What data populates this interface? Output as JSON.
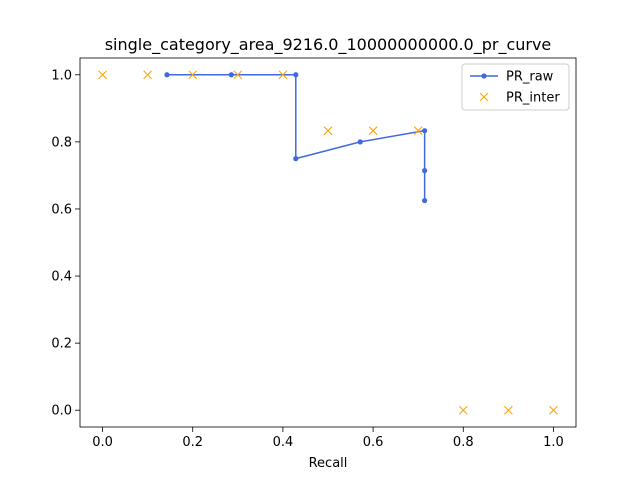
{
  "chart_data": {
    "type": "line",
    "title": "single_category_area_9216.0_10000000000.0_pr_curve",
    "xlabel": "Recall",
    "ylabel": "",
    "xlim": [
      -0.05,
      1.05
    ],
    "ylim": [
      -0.05,
      1.05
    ],
    "xticks": [
      "0.0",
      "0.2",
      "0.4",
      "0.6",
      "0.8",
      "1.0"
    ],
    "yticks": [
      "0.0",
      "0.2",
      "0.4",
      "0.6",
      "0.8",
      "1.0"
    ],
    "grid": false,
    "legend_position": "top-right",
    "series": [
      {
        "name": "PR_raw",
        "style": "line-with-dot-markers",
        "color": "#4169e1",
        "x": [
          0.1429,
          0.2857,
          0.4286,
          0.4286,
          0.5714,
          0.7143,
          0.7143,
          0.7143
        ],
        "y": [
          1.0,
          1.0,
          1.0,
          0.75,
          0.8,
          0.8333,
          0.7143,
          0.625
        ]
      },
      {
        "name": "PR_inter",
        "style": "x-markers",
        "color": "#ffa500",
        "x": [
          0.0,
          0.1,
          0.2,
          0.3,
          0.4,
          0.5,
          0.6,
          0.7,
          0.8,
          0.9,
          1.0
        ],
        "y": [
          1.0,
          1.0,
          1.0,
          1.0,
          1.0,
          0.8333,
          0.8333,
          0.8333,
          0.0,
          0.0,
          0.0
        ]
      }
    ]
  }
}
